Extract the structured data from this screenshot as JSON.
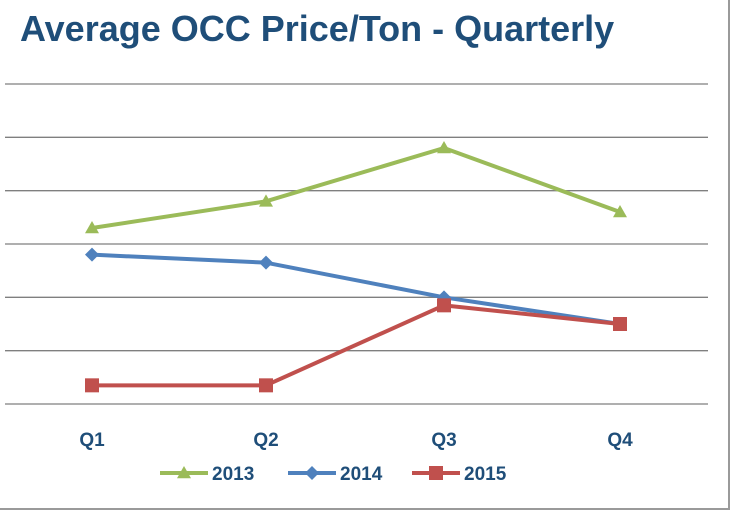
{
  "chart_data": {
    "type": "line",
    "title": "Average OCC Price/Ton - Quarterly",
    "xlabel": "",
    "ylabel": "",
    "categories": [
      "Q1",
      "Q2",
      "Q3",
      "Q4"
    ],
    "ylim": [
      0,
      6
    ],
    "grid": true,
    "legend": "bottom",
    "series": [
      {
        "name": "2013",
        "values": [
          3.3,
          3.8,
          4.8,
          3.6
        ],
        "color": "#9bbb59",
        "marker": "triangle"
      },
      {
        "name": "2014",
        "values": [
          2.8,
          2.65,
          2.0,
          1.5
        ],
        "color": "#4f81bd",
        "marker": "diamond"
      },
      {
        "name": "2015",
        "values": [
          0.35,
          0.35,
          1.85,
          1.5
        ],
        "color": "#c0504d",
        "marker": "square"
      }
    ]
  }
}
